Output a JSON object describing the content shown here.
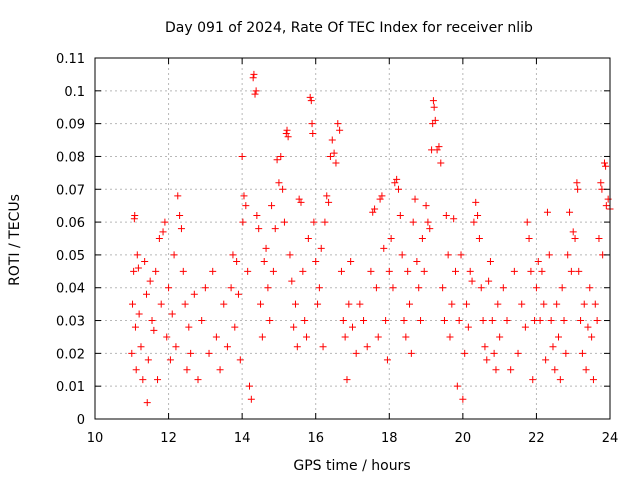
{
  "chart_data": {
    "type": "scatter",
    "title": "Day 091 of 2024, Rate Of TEC Index for receiver nlib",
    "xlabel": "GPS time / hours",
    "ylabel": "ROTI / TECUs",
    "xlim": [
      10,
      24
    ],
    "ylim": [
      0,
      0.11
    ],
    "x_ticks": [
      10,
      12,
      14,
      16,
      18,
      20,
      22,
      24
    ],
    "x_tick_labels": [
      "10",
      "12",
      "14",
      "16",
      "18",
      "20",
      "22",
      "24"
    ],
    "y_ticks": [
      0,
      0.01,
      0.02,
      0.03,
      0.04,
      0.05,
      0.06,
      0.07,
      0.08,
      0.09,
      0.1,
      0.11
    ],
    "y_tick_labels": [
      "0",
      "0.01",
      "0.02",
      "0.03",
      "0.04",
      "0.05",
      "0.06",
      "0.07",
      "0.08",
      "0.09",
      "0.1",
      "0.11"
    ],
    "grid": true,
    "marker": "+",
    "marker_color": "#ff0000",
    "series": [
      {
        "name": "ROTI",
        "points": [
          [
            11.0,
            0.02
          ],
          [
            11.02,
            0.035
          ],
          [
            11.05,
            0.045
          ],
          [
            11.07,
            0.061
          ],
          [
            11.08,
            0.062
          ],
          [
            11.1,
            0.028
          ],
          [
            11.12,
            0.015
          ],
          [
            11.15,
            0.05
          ],
          [
            11.18,
            0.046
          ],
          [
            11.2,
            0.032
          ],
          [
            11.25,
            0.022
          ],
          [
            11.3,
            0.012
          ],
          [
            11.35,
            0.048
          ],
          [
            11.4,
            0.038
          ],
          [
            11.42,
            0.005
          ],
          [
            11.45,
            0.018
          ],
          [
            11.5,
            0.042
          ],
          [
            11.55,
            0.03
          ],
          [
            11.6,
            0.027
          ],
          [
            11.65,
            0.045
          ],
          [
            11.7,
            0.012
          ],
          [
            11.75,
            0.055
          ],
          [
            11.8,
            0.035
          ],
          [
            11.85,
            0.057
          ],
          [
            11.9,
            0.06
          ],
          [
            11.95,
            0.025
          ],
          [
            12.0,
            0.04
          ],
          [
            12.05,
            0.018
          ],
          [
            12.1,
            0.032
          ],
          [
            12.15,
            0.05
          ],
          [
            12.2,
            0.022
          ],
          [
            12.25,
            0.068
          ],
          [
            12.3,
            0.062
          ],
          [
            12.35,
            0.058
          ],
          [
            12.4,
            0.045
          ],
          [
            12.45,
            0.035
          ],
          [
            12.5,
            0.015
          ],
          [
            12.55,
            0.028
          ],
          [
            12.6,
            0.02
          ],
          [
            12.7,
            0.038
          ],
          [
            12.8,
            0.012
          ],
          [
            12.9,
            0.03
          ],
          [
            13.0,
            0.04
          ],
          [
            13.1,
            0.02
          ],
          [
            13.2,
            0.045
          ],
          [
            13.3,
            0.025
          ],
          [
            13.4,
            0.015
          ],
          [
            13.5,
            0.035
          ],
          [
            13.6,
            0.022
          ],
          [
            13.7,
            0.04
          ],
          [
            13.75,
            0.05
          ],
          [
            13.8,
            0.028
          ],
          [
            13.85,
            0.048
          ],
          [
            13.9,
            0.038
          ],
          [
            13.95,
            0.018
          ],
          [
            14.0,
            0.08
          ],
          [
            14.02,
            0.06
          ],
          [
            14.05,
            0.068
          ],
          [
            14.1,
            0.065
          ],
          [
            14.15,
            0.045
          ],
          [
            14.2,
            0.01
          ],
          [
            14.25,
            0.006
          ],
          [
            14.3,
            0.104
          ],
          [
            14.32,
            0.105
          ],
          [
            14.35,
            0.099
          ],
          [
            14.38,
            0.1
          ],
          [
            14.4,
            0.062
          ],
          [
            14.45,
            0.058
          ],
          [
            14.5,
            0.035
          ],
          [
            14.55,
            0.025
          ],
          [
            14.6,
            0.048
          ],
          [
            14.65,
            0.052
          ],
          [
            14.7,
            0.04
          ],
          [
            14.75,
            0.03
          ],
          [
            14.8,
            0.065
          ],
          [
            14.85,
            0.045
          ],
          [
            14.9,
            0.058
          ],
          [
            14.95,
            0.079
          ],
          [
            15.0,
            0.072
          ],
          [
            15.05,
            0.08
          ],
          [
            15.1,
            0.07
          ],
          [
            15.15,
            0.06
          ],
          [
            15.2,
            0.087
          ],
          [
            15.22,
            0.088
          ],
          [
            15.25,
            0.086
          ],
          [
            15.3,
            0.05
          ],
          [
            15.35,
            0.042
          ],
          [
            15.4,
            0.028
          ],
          [
            15.45,
            0.035
          ],
          [
            15.5,
            0.022
          ],
          [
            15.55,
            0.067
          ],
          [
            15.6,
            0.066
          ],
          [
            15.65,
            0.045
          ],
          [
            15.7,
            0.03
          ],
          [
            15.75,
            0.025
          ],
          [
            15.8,
            0.055
          ],
          [
            15.85,
            0.098
          ],
          [
            15.88,
            0.097
          ],
          [
            15.9,
            0.09
          ],
          [
            15.92,
            0.087
          ],
          [
            15.95,
            0.06
          ],
          [
            16.0,
            0.048
          ],
          [
            16.05,
            0.035
          ],
          [
            16.1,
            0.04
          ],
          [
            16.15,
            0.052
          ],
          [
            16.2,
            0.022
          ],
          [
            16.25,
            0.06
          ],
          [
            16.3,
            0.068
          ],
          [
            16.35,
            0.066
          ],
          [
            16.4,
            0.08
          ],
          [
            16.45,
            0.085
          ],
          [
            16.5,
            0.081
          ],
          [
            16.55,
            0.078
          ],
          [
            16.6,
            0.09
          ],
          [
            16.65,
            0.088
          ],
          [
            16.7,
            0.045
          ],
          [
            16.75,
            0.03
          ],
          [
            16.8,
            0.025
          ],
          [
            16.85,
            0.012
          ],
          [
            16.9,
            0.035
          ],
          [
            16.95,
            0.048
          ],
          [
            17.0,
            0.028
          ],
          [
            17.1,
            0.02
          ],
          [
            17.2,
            0.035
          ],
          [
            17.3,
            0.03
          ],
          [
            17.4,
            0.022
          ],
          [
            17.5,
            0.045
          ],
          [
            17.55,
            0.063
          ],
          [
            17.6,
            0.064
          ],
          [
            17.65,
            0.04
          ],
          [
            17.7,
            0.025
          ],
          [
            17.75,
            0.067
          ],
          [
            17.8,
            0.068
          ],
          [
            17.85,
            0.052
          ],
          [
            17.9,
            0.03
          ],
          [
            17.95,
            0.018
          ],
          [
            18.0,
            0.045
          ],
          [
            18.05,
            0.055
          ],
          [
            18.1,
            0.04
          ],
          [
            18.15,
            0.072
          ],
          [
            18.2,
            0.073
          ],
          [
            18.25,
            0.07
          ],
          [
            18.3,
            0.062
          ],
          [
            18.35,
            0.05
          ],
          [
            18.4,
            0.03
          ],
          [
            18.45,
            0.025
          ],
          [
            18.5,
            0.045
          ],
          [
            18.55,
            0.035
          ],
          [
            18.6,
            0.02
          ],
          [
            18.65,
            0.06
          ],
          [
            18.7,
            0.067
          ],
          [
            18.75,
            0.048
          ],
          [
            18.8,
            0.04
          ],
          [
            18.85,
            0.03
          ],
          [
            18.9,
            0.055
          ],
          [
            18.95,
            0.045
          ],
          [
            19.0,
            0.065
          ],
          [
            19.05,
            0.06
          ],
          [
            19.1,
            0.058
          ],
          [
            19.15,
            0.082
          ],
          [
            19.18,
            0.09
          ],
          [
            19.2,
            0.097
          ],
          [
            19.22,
            0.095
          ],
          [
            19.25,
            0.091
          ],
          [
            19.3,
            0.082
          ],
          [
            19.35,
            0.083
          ],
          [
            19.4,
            0.078
          ],
          [
            19.45,
            0.04
          ],
          [
            19.5,
            0.03
          ],
          [
            19.55,
            0.062
          ],
          [
            19.6,
            0.05
          ],
          [
            19.65,
            0.025
          ],
          [
            19.7,
            0.035
          ],
          [
            19.75,
            0.061
          ],
          [
            19.8,
            0.045
          ],
          [
            19.85,
            0.01
          ],
          [
            19.9,
            0.03
          ],
          [
            19.95,
            0.05
          ],
          [
            20.0,
            0.006
          ],
          [
            20.05,
            0.02
          ],
          [
            20.1,
            0.035
          ],
          [
            20.15,
            0.028
          ],
          [
            20.2,
            0.045
          ],
          [
            20.25,
            0.042
          ],
          [
            20.3,
            0.06
          ],
          [
            20.35,
            0.066
          ],
          [
            20.4,
            0.062
          ],
          [
            20.45,
            0.055
          ],
          [
            20.5,
            0.04
          ],
          [
            20.55,
            0.03
          ],
          [
            20.6,
            0.022
          ],
          [
            20.65,
            0.018
          ],
          [
            20.7,
            0.042
          ],
          [
            20.75,
            0.048
          ],
          [
            20.8,
            0.03
          ],
          [
            20.85,
            0.02
          ],
          [
            20.9,
            0.015
          ],
          [
            20.95,
            0.035
          ],
          [
            21.0,
            0.025
          ],
          [
            21.1,
            0.04
          ],
          [
            21.2,
            0.03
          ],
          [
            21.3,
            0.015
          ],
          [
            21.4,
            0.045
          ],
          [
            21.5,
            0.02
          ],
          [
            21.6,
            0.035
          ],
          [
            21.7,
            0.028
          ],
          [
            21.75,
            0.06
          ],
          [
            21.8,
            0.055
          ],
          [
            21.85,
            0.045
          ],
          [
            21.9,
            0.012
          ],
          [
            21.95,
            0.03
          ],
          [
            22.0,
            0.04
          ],
          [
            22.05,
            0.048
          ],
          [
            22.1,
            0.03
          ],
          [
            22.15,
            0.045
          ],
          [
            22.2,
            0.035
          ],
          [
            22.25,
            0.018
          ],
          [
            22.3,
            0.063
          ],
          [
            22.35,
            0.05
          ],
          [
            22.4,
            0.03
          ],
          [
            22.45,
            0.022
          ],
          [
            22.5,
            0.015
          ],
          [
            22.55,
            0.035
          ],
          [
            22.6,
            0.025
          ],
          [
            22.65,
            0.012
          ],
          [
            22.7,
            0.04
          ],
          [
            22.75,
            0.03
          ],
          [
            22.8,
            0.02
          ],
          [
            22.85,
            0.05
          ],
          [
            22.9,
            0.063
          ],
          [
            22.95,
            0.045
          ],
          [
            23.0,
            0.057
          ],
          [
            23.05,
            0.055
          ],
          [
            23.1,
            0.072
          ],
          [
            23.12,
            0.07
          ],
          [
            23.15,
            0.045
          ],
          [
            23.2,
            0.03
          ],
          [
            23.25,
            0.02
          ],
          [
            23.3,
            0.035
          ],
          [
            23.35,
            0.015
          ],
          [
            23.4,
            0.028
          ],
          [
            23.45,
            0.04
          ],
          [
            23.5,
            0.025
          ],
          [
            23.55,
            0.012
          ],
          [
            23.6,
            0.035
          ],
          [
            23.65,
            0.03
          ],
          [
            23.7,
            0.055
          ],
          [
            23.75,
            0.072
          ],
          [
            23.78,
            0.07
          ],
          [
            23.8,
            0.05
          ],
          [
            23.85,
            0.078
          ],
          [
            23.88,
            0.077
          ],
          [
            23.9,
            0.065
          ],
          [
            23.95,
            0.067
          ],
          [
            24.0,
            0.064
          ]
        ]
      }
    ]
  }
}
